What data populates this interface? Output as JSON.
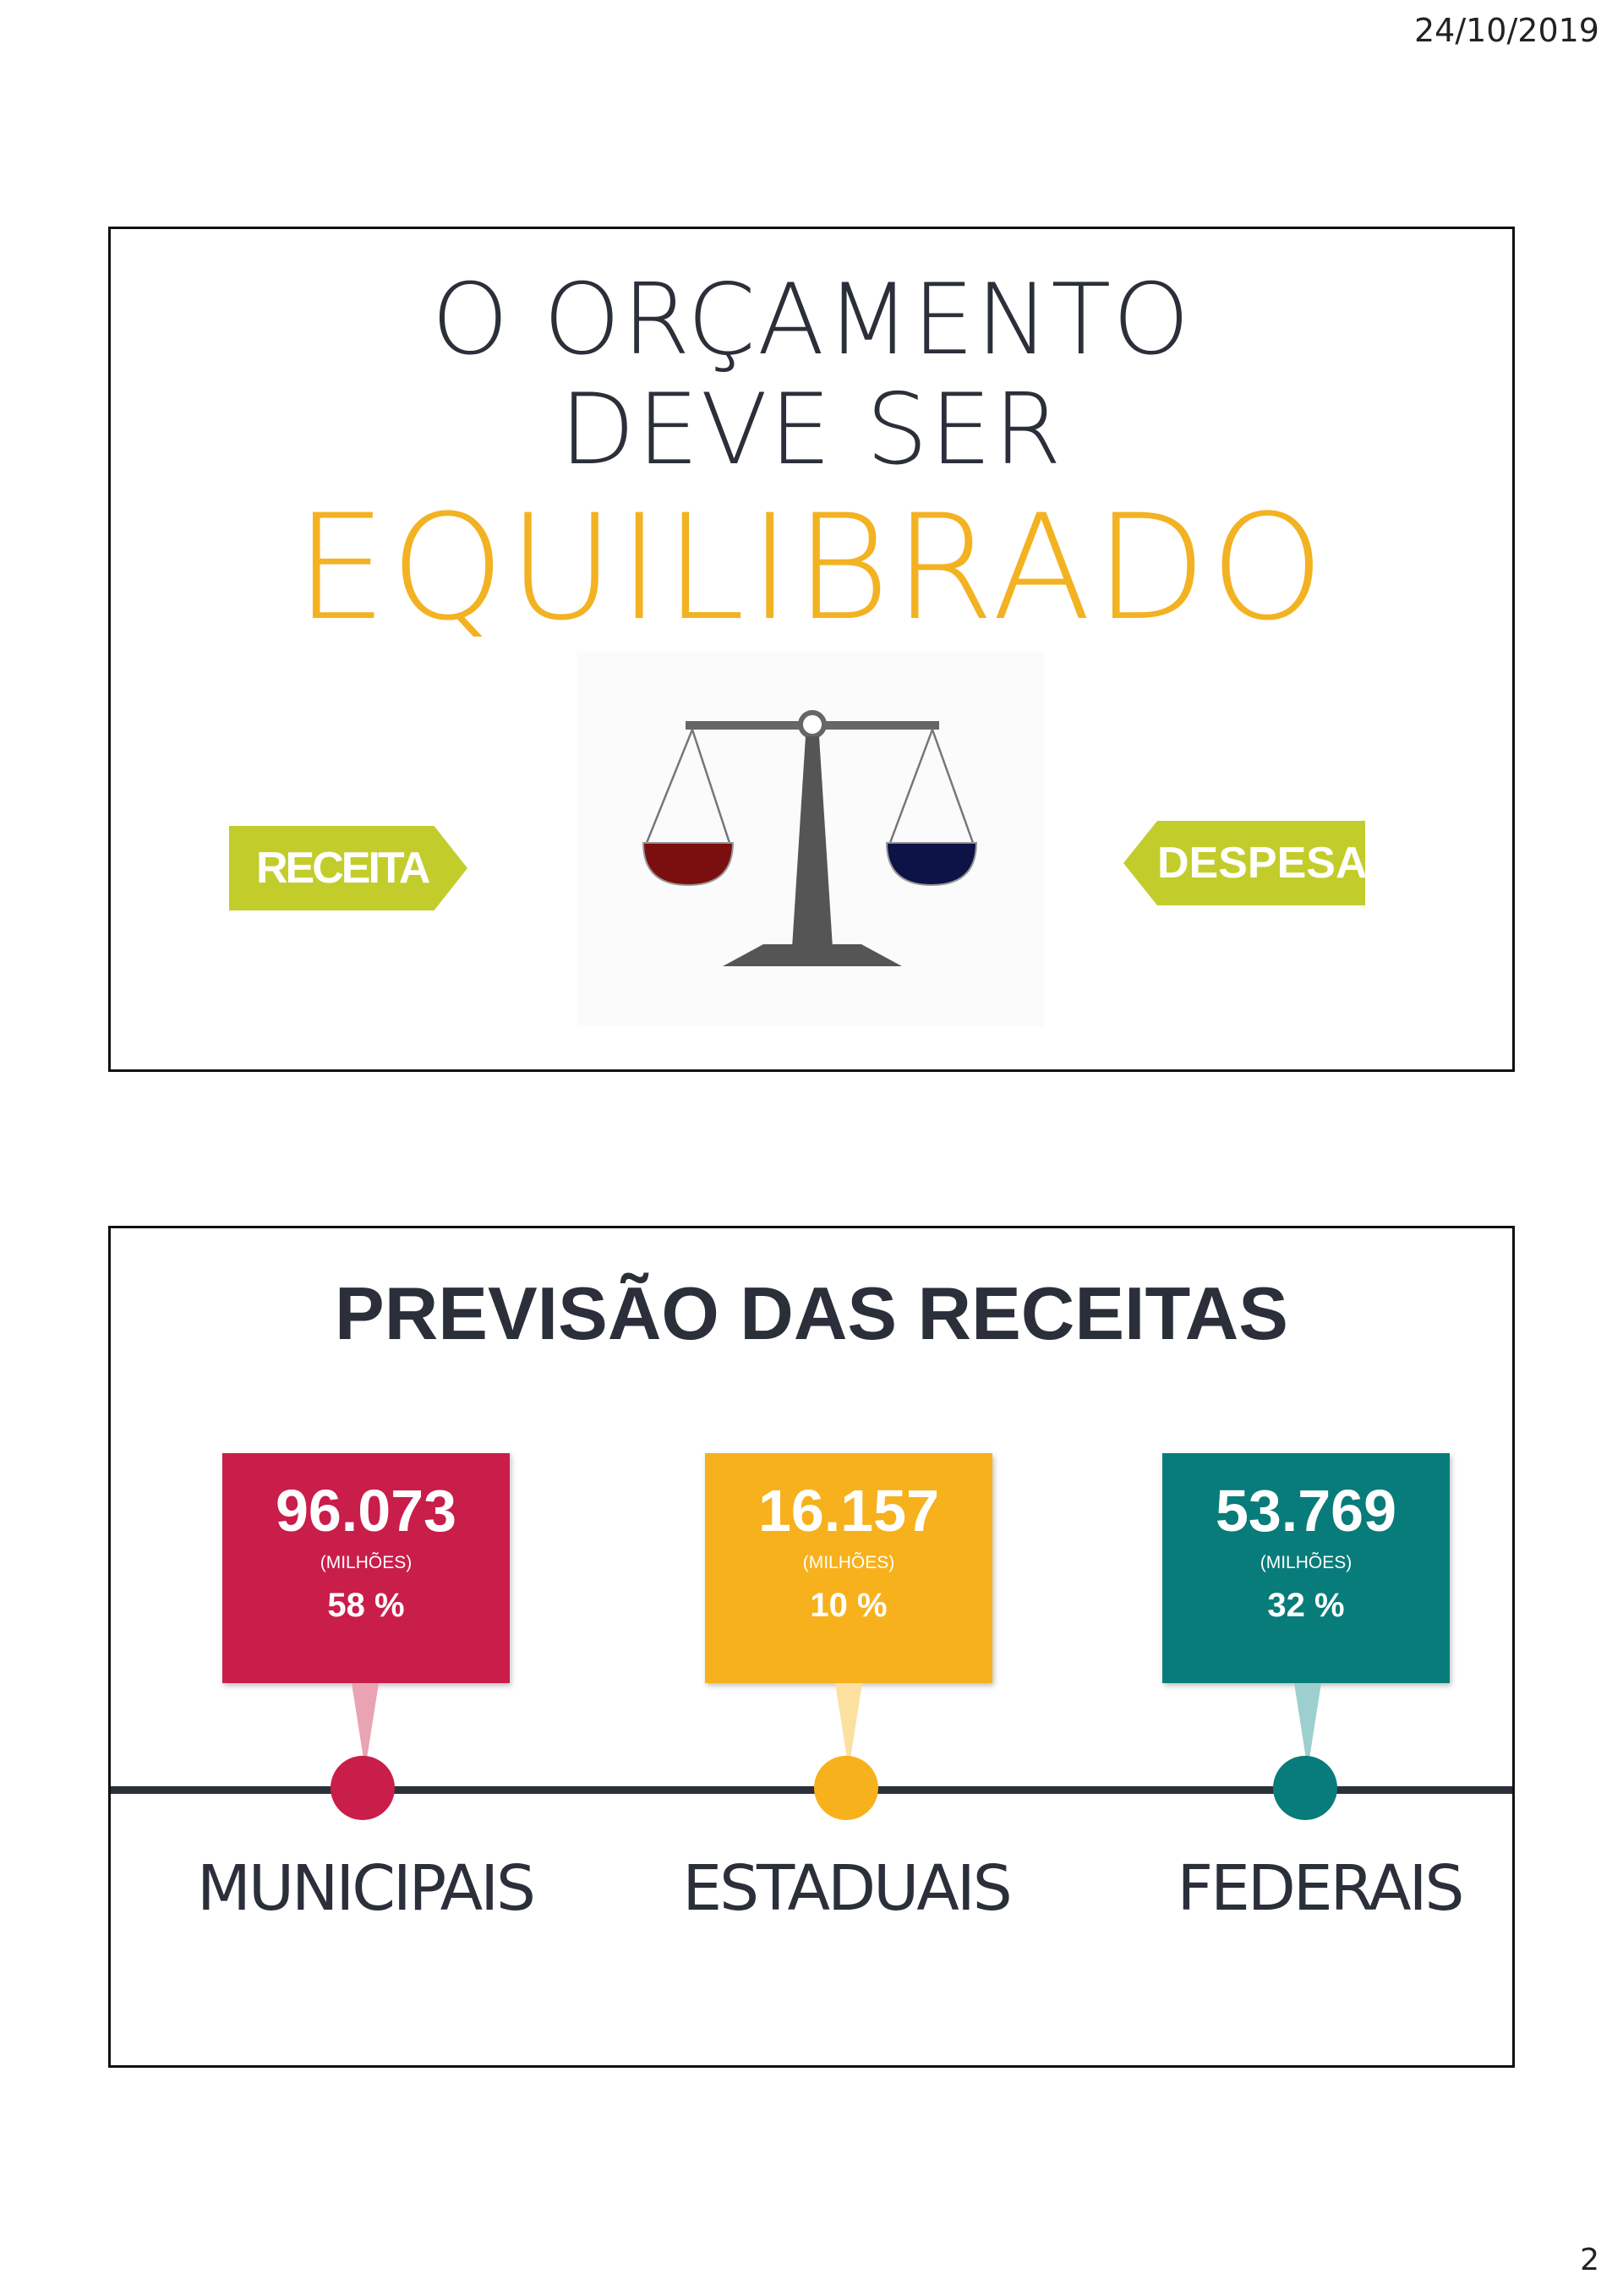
{
  "header": {
    "date": "24/10/2019"
  },
  "footer": {
    "page_number": "2"
  },
  "slide1": {
    "title_line1": "O ORÇAMENTO",
    "title_line2": "DEVE SER",
    "title_highlight": "EQUILIBRADO",
    "left_tag": "RECEITA",
    "right_tag": "DESPESA",
    "colors": {
      "highlight": "#f3b221",
      "tag": "#c2cd2c",
      "left_pan": "#7b0f10",
      "right_pan": "#0d1346"
    },
    "image": "balance-scale-icon"
  },
  "slide2": {
    "title": "PREVISÃO DAS RECEITAS",
    "items": [
      {
        "value": "96.073",
        "unit": "(MILHÕES)",
        "percent": "58 %",
        "label": "MUNICIPAIS",
        "color": "#c91d4a",
        "stem_color": "#e9a3b3"
      },
      {
        "value": "16.157",
        "unit": "(MILHÕES)",
        "percent": "10 %",
        "label": "ESTADUAIS",
        "color": "#f7b11c",
        "stem_color": "#fbe0a0"
      },
      {
        "value": "53.769",
        "unit": "(MILHÕES)",
        "percent": "32 %",
        "label": "FEDERAIS",
        "color": "#087c7a",
        "stem_color": "#9ccfcd"
      }
    ]
  }
}
